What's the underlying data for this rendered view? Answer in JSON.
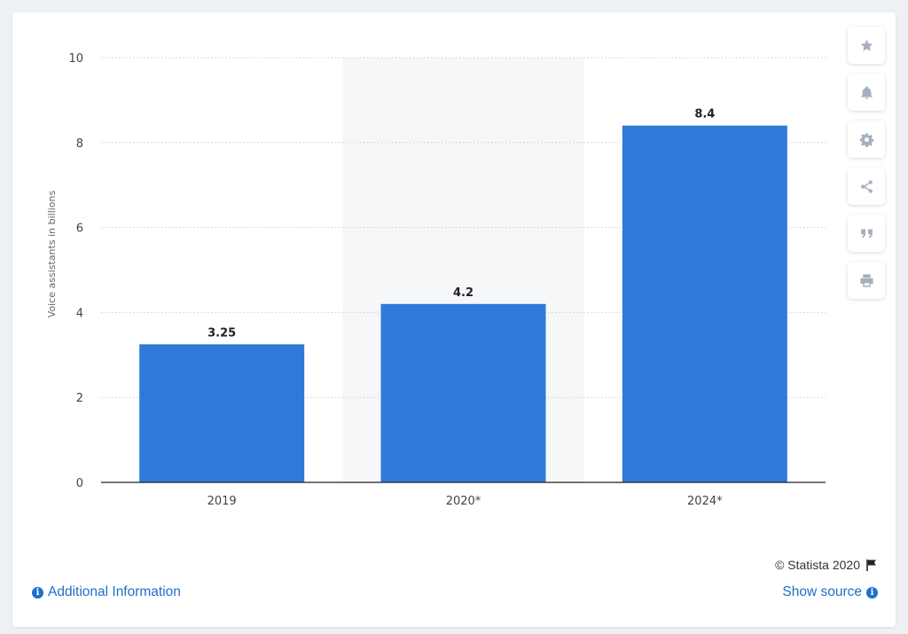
{
  "chart_data": {
    "type": "bar",
    "categories": [
      "2019",
      "2020*",
      "2024*"
    ],
    "values": [
      3.25,
      4.2,
      8.4
    ],
    "value_labels": [
      "3.25",
      "4.2",
      "8.4"
    ],
    "ylabel": "Voice assistants in billions",
    "xlabel": "",
    "title": "",
    "ylim": [
      0,
      10
    ],
    "yticks": [
      0,
      2,
      4,
      6,
      8,
      10
    ],
    "highlighted_category": "2020*",
    "grid": true,
    "bar_color": "#2f7ad8",
    "highlight_color": "#f6f7f8"
  },
  "toolbar": {
    "icons": [
      "star-icon",
      "bell-icon",
      "gear-icon",
      "share-icon",
      "quote-icon",
      "print-icon"
    ],
    "icon_color": "#a6b0bd"
  },
  "footer": {
    "copyright": "© Statista 2020",
    "additional_info": "Additional Information",
    "show_source": "Show source"
  }
}
